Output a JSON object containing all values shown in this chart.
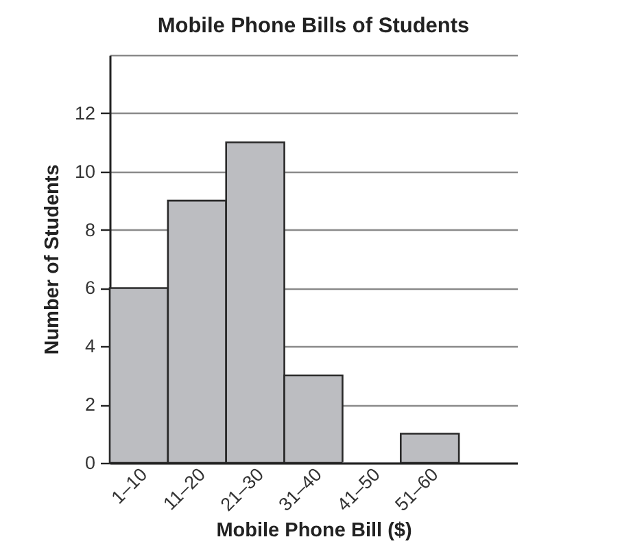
{
  "chart_data": {
    "type": "bar",
    "title": "Mobile Phone Bills of Students",
    "xlabel": "Mobile Phone Bill ($)",
    "ylabel": "Number of Students",
    "categories": [
      "1–10",
      "11–20",
      "21–30",
      "31–40",
      "41–50",
      "51–60"
    ],
    "values": [
      6,
      9,
      11,
      3,
      0,
      1
    ],
    "color": "#bcbdc1",
    "ylim": [
      0,
      14
    ],
    "yticks": [
      0,
      2,
      4,
      6,
      8,
      10,
      12,
      {
        "value": 14,
        "label": null
      }
    ],
    "grid": "y"
  }
}
